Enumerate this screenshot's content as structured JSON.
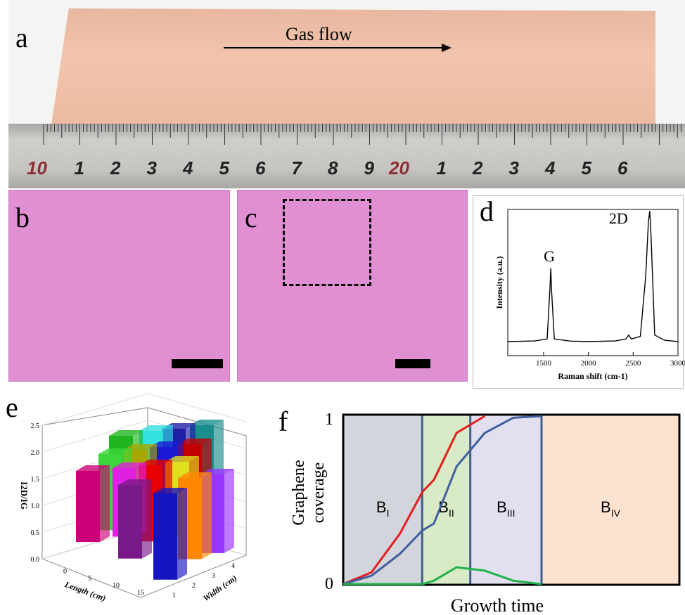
{
  "panel_a": {
    "label": "a",
    "gas_flow": "Gas flow",
    "ruler_numbers": [
      "10",
      "1",
      "2",
      "3",
      "4",
      "5",
      "6",
      "7",
      "8",
      "9",
      "20",
      "1",
      "2",
      "3",
      "4",
      "5",
      "6"
    ],
    "ruler_highlight_color": "#8b2f34"
  },
  "panel_b": {
    "label": "b"
  },
  "panel_c": {
    "label": "c"
  },
  "panel_d": {
    "label": "d",
    "peak_g": "G",
    "peak_2d": "2D",
    "chart_data": {
      "type": "line",
      "xlabel": "Raman shift (cm-1)",
      "ylabel": "Intensity (a.u.)",
      "xlim": [
        1100,
        3000
      ],
      "xticks": [
        "1500",
        "2000",
        "2500",
        "3000"
      ],
      "series": [
        {
          "x": [
            1100,
            1400,
            1540,
            1570,
            1580,
            1590,
            1620,
            1800,
            2000,
            2300,
            2420,
            2450,
            2480,
            2580,
            2640,
            2670,
            2685,
            2700,
            2740,
            2850,
            3000
          ],
          "y": [
            0,
            0.005,
            0.02,
            0.4,
            0.56,
            0.38,
            0.02,
            0.004,
            0.0,
            0.005,
            0.02,
            0.05,
            0.02,
            0.04,
            0.5,
            0.92,
            1.0,
            0.8,
            0.05,
            0.01,
            0.0
          ]
        }
      ]
    }
  },
  "panel_e": {
    "label": "e",
    "chart_data": {
      "type": "bar",
      "zlabel": "I2D/IG",
      "xlabel": "Length (cm)",
      "ylabel": "Width (cm)",
      "zticks": [
        "0.0",
        "0.5",
        "1.0",
        "1.5",
        "2.0",
        "2.5"
      ],
      "xticks": [
        "0",
        "5",
        "10",
        "15"
      ],
      "yticks": [
        "1",
        "2",
        "3",
        "4"
      ],
      "bars": [
        {
          "color": "#1a8e8e",
          "value": 1.95
        },
        {
          "color": "#1f1fa8",
          "value": 1.8
        },
        {
          "color": "#33e0e0",
          "value": 1.7
        },
        {
          "color": "#20b520",
          "value": 1.55
        },
        {
          "color": "#c40000",
          "value": 1.5
        },
        {
          "color": "#1a1ad6",
          "value": 1.6
        },
        {
          "color": "#a8a800",
          "value": 1.4
        },
        {
          "color": "#3ad63a",
          "value": 1.5
        },
        {
          "color": "#e0e020",
          "value": 1.45
        },
        {
          "color": "#e60000",
          "value": 1.5
        },
        {
          "color": "#e020e0",
          "value": 1.35
        },
        {
          "color": "#cc0077",
          "value": 1.4
        },
        {
          "color": "#9933ff",
          "value": 1.55
        },
        {
          "color": "#ff8800",
          "value": 1.6
        },
        {
          "color": "#7a1a8a",
          "value": 1.45
        },
        {
          "color": "#1515c0",
          "value": 1.7
        }
      ]
    }
  },
  "panel_f": {
    "label": "f",
    "chart_data": {
      "type": "line",
      "xlabel": "Growth time",
      "ylabel": "Graphene coverage",
      "yticks": [
        "0",
        "1"
      ],
      "regions": [
        {
          "name": "BI",
          "base": "B",
          "sub": "I",
          "color": "#d3d5dc"
        },
        {
          "name": "BII",
          "base": "B",
          "sub": "II",
          "color": "#d9eac6"
        },
        {
          "name": "BIII",
          "base": "B",
          "sub": "III",
          "color": "#e2dff1"
        },
        {
          "name": "BIV",
          "base": "B",
          "sub": "IV",
          "color": "#fde2d0"
        }
      ],
      "series": [
        {
          "color": "#e41e1e",
          "x": [
            0,
            0.1,
            0.2,
            0.28,
            0.32,
            0.4,
            0.5
          ],
          "y": [
            0,
            0.07,
            0.3,
            0.55,
            0.62,
            0.9,
            1.0
          ]
        },
        {
          "color": "#3f5e9e",
          "x": [
            0,
            0.1,
            0.2,
            0.28,
            0.32,
            0.4,
            0.5,
            0.6,
            0.7
          ],
          "y": [
            0,
            0.05,
            0.18,
            0.32,
            0.36,
            0.7,
            0.9,
            0.99,
            1.0
          ]
        },
        {
          "color": "#1fb34a",
          "x": [
            0,
            0.28,
            0.32,
            0.4,
            0.5,
            0.6,
            0.7
          ],
          "y": [
            0,
            0,
            0.02,
            0.1,
            0.08,
            0.02,
            0.0
          ]
        }
      ]
    }
  }
}
